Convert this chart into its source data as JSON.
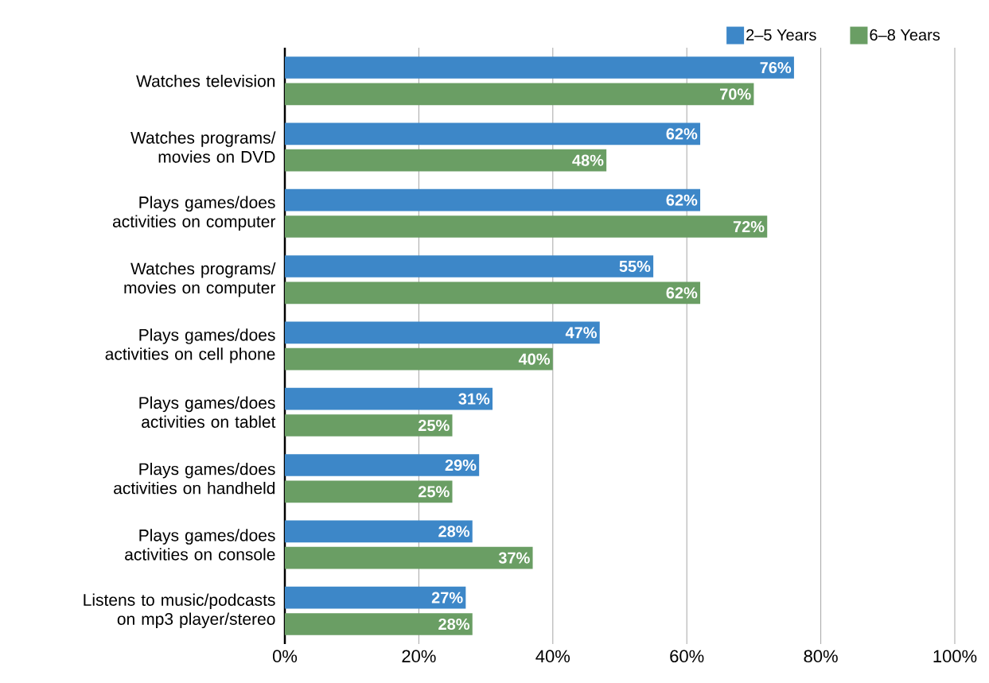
{
  "chart_data": {
    "type": "bar",
    "orientation": "horizontal",
    "categories": [
      "Watches television",
      "Watches programs/ movies on DVD",
      "Plays games/does activities on computer",
      "Watches programs/ movies on computer",
      "Plays games/does activities on cell phone",
      "Plays games/does activities on tablet",
      "Plays games/does activities on handheld",
      "Plays games/does activities on console",
      "Listens to music/podcasts on mp3 player/stereo"
    ],
    "series": [
      {
        "name": "2–5 Years",
        "color": "#3d87c8",
        "values": [
          76,
          62,
          62,
          55,
          47,
          31,
          29,
          28,
          27
        ],
        "value_labels": [
          "76%",
          "62%",
          "62%",
          "55%",
          "47%",
          "31%",
          "29%",
          "28%",
          "27%"
        ]
      },
      {
        "name": "6–8 Years",
        "color": "#6a9e64",
        "values": [
          70,
          48,
          72,
          62,
          40,
          25,
          25,
          37,
          28
        ],
        "value_labels": [
          "70%",
          "48%",
          "72%",
          "62%",
          "40%",
          "25%",
          "25%",
          "37%",
          "28%"
        ]
      }
    ],
    "xlim": [
      0,
      100
    ],
    "xticks": [
      {
        "value": 0,
        "label": "0%"
      },
      {
        "value": 20,
        "label": "20%"
      },
      {
        "value": 40,
        "label": "40%"
      },
      {
        "value": 60,
        "label": "60%"
      },
      {
        "value": 80,
        "label": "80%"
      },
      {
        "value": 100,
        "label": "100%"
      }
    ],
    "grid": "x",
    "legend": "top right"
  }
}
